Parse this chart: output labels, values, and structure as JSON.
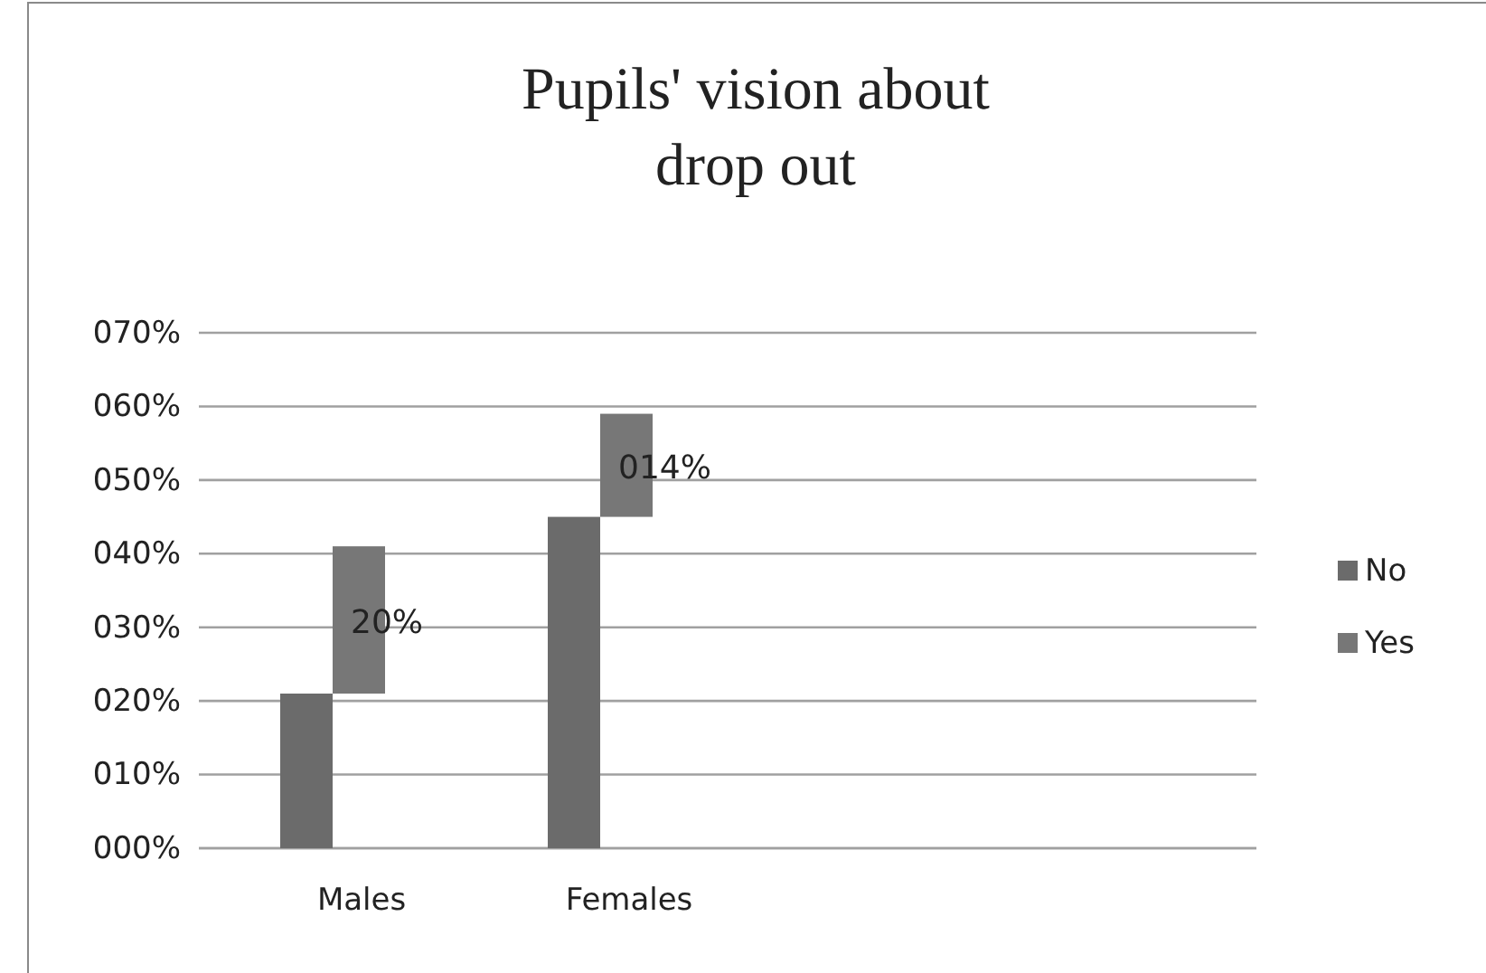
{
  "chart_data": {
    "type": "bar",
    "title": "Pupils' vision about drop out",
    "categories": [
      "Males",
      "Females"
    ],
    "stacked": true,
    "series": [
      {
        "name": "No",
        "color": "#6b6b6b",
        "values": [
          21,
          45
        ]
      },
      {
        "name": "Yes",
        "color": "#777777",
        "values": [
          20,
          14
        ],
        "value_labels": [
          "20%",
          "014%"
        ]
      }
    ],
    "ylim": [
      0,
      70
    ],
    "yticks": [
      {
        "value": 0,
        "label": "000%"
      },
      {
        "value": 10,
        "label": "010%"
      },
      {
        "value": 20,
        "label": "020%"
      },
      {
        "value": 30,
        "label": "030%"
      },
      {
        "value": 40,
        "label": "040%"
      },
      {
        "value": 50,
        "label": "050%"
      },
      {
        "value": 60,
        "label": "060%"
      },
      {
        "value": 70,
        "label": "070%"
      }
    ],
    "grid": "y",
    "legend": "right"
  }
}
